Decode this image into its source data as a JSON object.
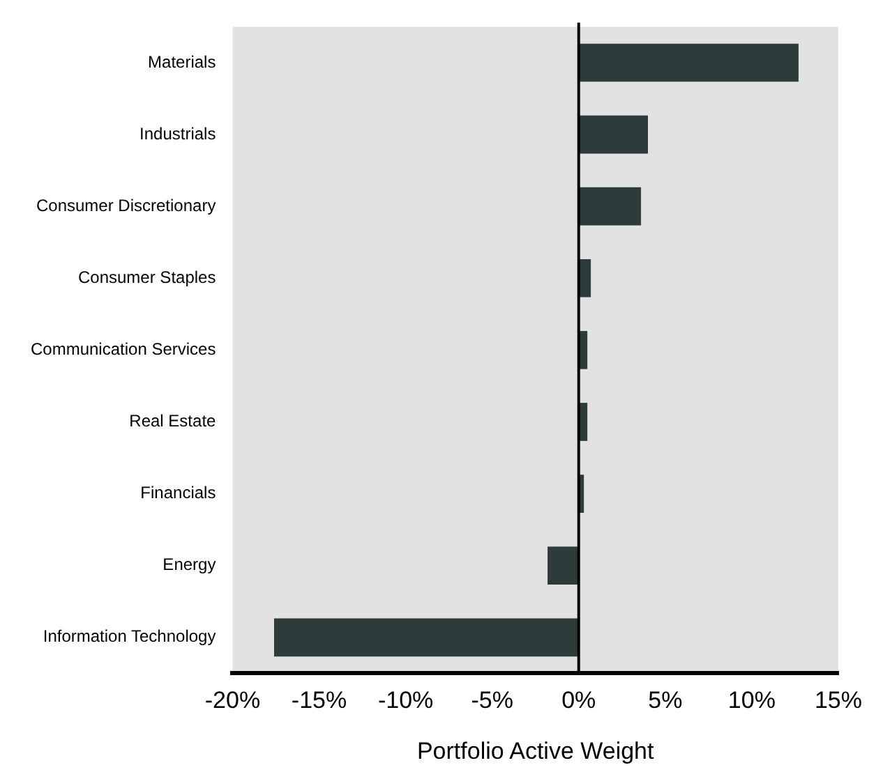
{
  "chart_data": {
    "type": "bar",
    "orientation": "horizontal",
    "xlabel": "Portfolio Active Weight",
    "categories": [
      "Materials",
      "Industrials",
      "Consumer Discretionary",
      "Consumer Staples",
      "Communication Services",
      "Real Estate",
      "Financials",
      "Energy",
      "Information Technology"
    ],
    "values": [
      12.7,
      4.0,
      3.6,
      0.7,
      0.5,
      0.5,
      0.3,
      -1.8,
      -17.6
    ],
    "color": "#2d3b3b",
    "xlim": [
      -20,
      15
    ],
    "xticks": [
      {
        "value": -20,
        "label": "-20%"
      },
      {
        "value": -15,
        "label": "-15%"
      },
      {
        "value": -10,
        "label": "-10%"
      },
      {
        "value": -5,
        "label": "-5%"
      },
      {
        "value": 0,
        "label": "0%"
      },
      {
        "value": 5,
        "label": "5%"
      },
      {
        "value": 10,
        "label": "10%"
      },
      {
        "value": 15,
        "label": "15%"
      }
    ],
    "ref_lines": [
      {
        "axis": "x",
        "value": 0,
        "color": "#000000"
      }
    ],
    "grid": false,
    "legend": false
  }
}
